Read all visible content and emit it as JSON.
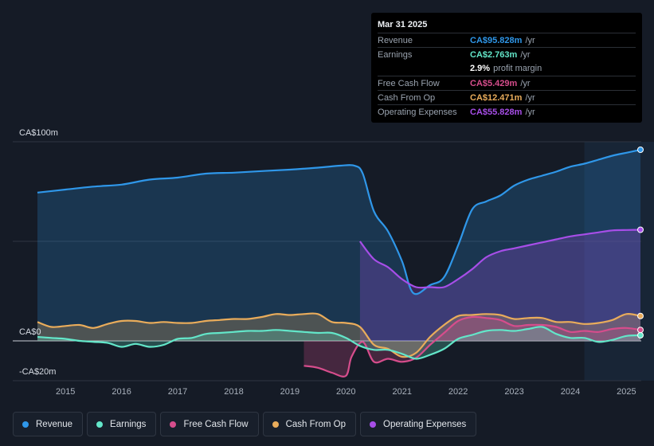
{
  "tooltip": {
    "date": "Mar 31 2025",
    "rows": [
      {
        "label": "Revenue",
        "value": "CA$95.828m",
        "unit": "/yr",
        "color": "#2f97e9"
      },
      {
        "label": "Earnings",
        "value": "CA$2.763m",
        "unit": "/yr",
        "color": "#63e6c9"
      },
      {
        "label": "",
        "value": "2.9%",
        "unit": "profit margin",
        "color": "#ffffff"
      },
      {
        "label": "Free Cash Flow",
        "value": "CA$5.429m",
        "unit": "/yr",
        "color": "#d64d8c"
      },
      {
        "label": "Cash From Op",
        "value": "CA$12.471m",
        "unit": "/yr",
        "color": "#e9ac5b"
      },
      {
        "label": "Operating Expenses",
        "value": "CA$55.828m",
        "unit": "/yr",
        "color": "#a74ee8"
      }
    ]
  },
  "legend": [
    {
      "label": "Revenue",
      "color": "#2f97e9"
    },
    {
      "label": "Earnings",
      "color": "#63e6c9"
    },
    {
      "label": "Free Cash Flow",
      "color": "#d64d8c"
    },
    {
      "label": "Cash From Op",
      "color": "#e9ac5b"
    },
    {
      "label": "Operating Expenses",
      "color": "#a74ee8"
    }
  ],
  "chart_data": {
    "type": "area",
    "title": "",
    "xlabel": "",
    "ylabel": "",
    "y_tick_labels": [
      "CA$100m",
      "CA$0",
      "-CA$20m"
    ],
    "ylim": [
      -20,
      100
    ],
    "xlim": [
      2014.5,
      2025.3
    ],
    "x_ticks": [
      2015,
      2016,
      2017,
      2018,
      2019,
      2020,
      2021,
      2022,
      2023,
      2024,
      2025
    ],
    "x_tick_labels": [
      "2015",
      "2016",
      "2017",
      "2018",
      "2019",
      "2020",
      "2021",
      "2022",
      "2023",
      "2024",
      "2025"
    ],
    "forecast_shade_from": 2024.25,
    "series": [
      {
        "name": "Revenue",
        "color": "#2f97e9",
        "x": [
          2014.5,
          2015,
          2015.5,
          2016,
          2016.5,
          2017,
          2017.5,
          2018,
          2018.5,
          2019,
          2019.5,
          2019.9,
          2020.15,
          2020.3,
          2020.5,
          2020.75,
          2021.0,
          2021.2,
          2021.5,
          2021.75,
          2022.0,
          2022.25,
          2022.5,
          2022.75,
          2023.0,
          2023.25,
          2023.5,
          2023.75,
          2024.0,
          2024.25,
          2024.5,
          2024.75,
          2025.0,
          2025.25
        ],
        "y": [
          74.5,
          76,
          77.5,
          78.5,
          81,
          82,
          84,
          84.5,
          85.3,
          86,
          87,
          88,
          88,
          84,
          65,
          55,
          40,
          24,
          28,
          32,
          48,
          66,
          70,
          73,
          78,
          81,
          83,
          85,
          87.5,
          89,
          91,
          93,
          94.5,
          96
        ]
      },
      {
        "name": "Operating Expenses",
        "color": "#a74ee8",
        "x": [
          2020.25,
          2020.5,
          2020.75,
          2021.0,
          2021.25,
          2021.5,
          2021.75,
          2022.0,
          2022.25,
          2022.5,
          2022.75,
          2023.0,
          2023.25,
          2023.5,
          2023.75,
          2024.0,
          2024.25,
          2024.5,
          2024.75,
          2025.0,
          2025.25
        ],
        "y": [
          50,
          41,
          37,
          31,
          27,
          27,
          27,
          31,
          36,
          42,
          45,
          46.5,
          48,
          49.5,
          51,
          52.5,
          53.5,
          54.5,
          55.5,
          55.7,
          55.8
        ]
      },
      {
        "name": "Cash From Op",
        "color": "#e9ac5b",
        "x": [
          2014.5,
          2014.75,
          2015,
          2015.25,
          2015.5,
          2015.75,
          2016,
          2016.25,
          2016.5,
          2016.75,
          2017,
          2017.25,
          2017.5,
          2017.75,
          2018,
          2018.25,
          2018.5,
          2018.75,
          2019,
          2019.25,
          2019.5,
          2019.75,
          2020.0,
          2020.25,
          2020.5,
          2020.75,
          2021.0,
          2021.25,
          2021.5,
          2021.75,
          2022.0,
          2022.25,
          2022.5,
          2022.75,
          2023.0,
          2023.25,
          2023.5,
          2023.75,
          2024.0,
          2024.25,
          2024.5,
          2024.75,
          2025.0,
          2025.25
        ],
        "y": [
          9.5,
          7,
          7.5,
          8,
          6.5,
          8.5,
          10,
          10,
          9,
          9.5,
          9,
          9,
          10,
          10.5,
          11,
          11,
          12,
          13.5,
          13,
          13.5,
          13.5,
          9.5,
          9,
          7,
          -2,
          -4,
          -8,
          -6,
          2,
          8,
          12.5,
          13,
          13.5,
          13,
          11,
          11.5,
          11.5,
          9.5,
          9.5,
          8.5,
          9,
          10.5,
          13.5,
          12.5
        ]
      },
      {
        "name": "Free Cash Flow",
        "color": "#d64d8c",
        "x": [
          2019.25,
          2019.5,
          2019.75,
          2020.0,
          2020.1,
          2020.3,
          2020.5,
          2020.75,
          2021.0,
          2021.25,
          2021.5,
          2021.75,
          2022.0,
          2022.25,
          2022.5,
          2022.75,
          2023.0,
          2023.25,
          2023.5,
          2023.75,
          2024.0,
          2024.25,
          2024.5,
          2024.75,
          2025.0,
          2025.25
        ],
        "y": [
          -12.5,
          -13.5,
          -16,
          -17.5,
          -8,
          -0.5,
          -10.5,
          -9,
          -10.5,
          -8.5,
          -2,
          4,
          10,
          12,
          11.5,
          10.5,
          7.5,
          8,
          8,
          7,
          4.5,
          5,
          4.5,
          6,
          6.5,
          5.5
        ]
      },
      {
        "name": "Earnings",
        "color": "#63e6c9",
        "x": [
          2014.5,
          2014.75,
          2015,
          2015.25,
          2015.5,
          2015.75,
          2016,
          2016.25,
          2016.5,
          2016.75,
          2017,
          2017.25,
          2017.5,
          2017.75,
          2018,
          2018.25,
          2018.5,
          2018.75,
          2019,
          2019.25,
          2019.5,
          2019.75,
          2020.0,
          2020.25,
          2020.5,
          2020.75,
          2021.0,
          2021.25,
          2021.5,
          2021.75,
          2022.0,
          2022.25,
          2022.5,
          2022.75,
          2023.0,
          2023.25,
          2023.5,
          2023.75,
          2024.0,
          2024.25,
          2024.5,
          2024.75,
          2025.0,
          2025.25
        ],
        "y": [
          2,
          1.5,
          1,
          0,
          -0.5,
          -1,
          -3,
          -1.5,
          -3,
          -2,
          1,
          1.5,
          3.5,
          4,
          4.5,
          5,
          5,
          5.5,
          5,
          4.5,
          4,
          4,
          1.5,
          -2.5,
          -4.5,
          -4.5,
          -6.5,
          -9,
          -7,
          -4,
          1,
          3,
          5,
          5.5,
          5,
          6,
          7,
          3.5,
          1.5,
          1.5,
          -0.5,
          0.5,
          2.5,
          2.8
        ]
      }
    ]
  }
}
